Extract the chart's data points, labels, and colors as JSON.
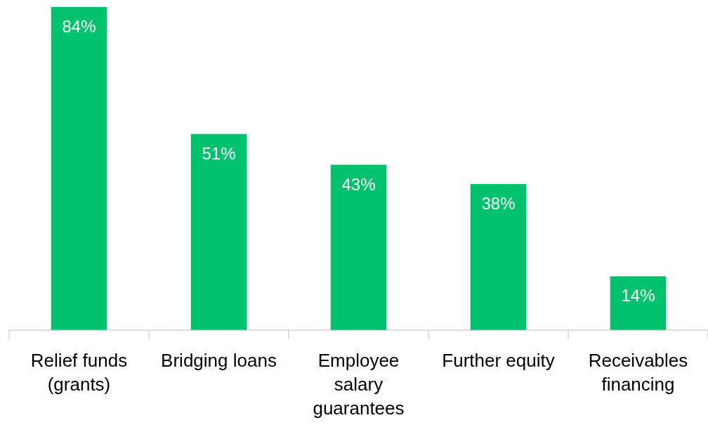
{
  "chart_data": {
    "type": "bar",
    "categories": [
      "Relief funds (grants)",
      "Bridging loans",
      "Employee salary guarantees",
      "Further equity",
      "Receivables financing"
    ],
    "values": [
      84,
      51,
      43,
      38,
      14
    ],
    "value_labels": [
      "84%",
      "51%",
      "43%",
      "38%",
      "14%"
    ],
    "color": "#00c16e"
  }
}
